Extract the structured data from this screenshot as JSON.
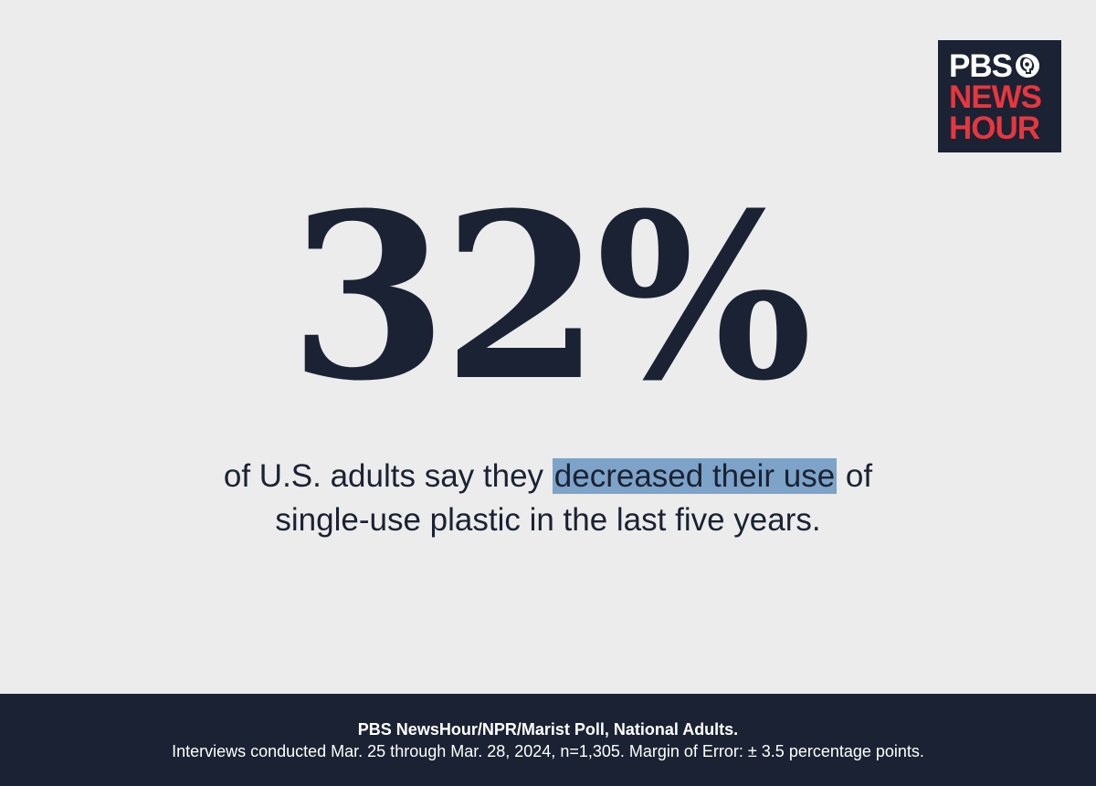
{
  "logo": {
    "line1": "PBS",
    "line2": "NEWS",
    "line3": "HOUR",
    "icon": "pbs-head-icon",
    "colors": {
      "background": "#1a2233",
      "white_text": "#ffffff",
      "red_text": "#e8363d"
    }
  },
  "stat": {
    "value": "32%"
  },
  "caption": {
    "line1_before": "of U.S. adults say they ",
    "line1_highlight": "decreased their use",
    "line1_after": " of",
    "line2": "single-use plastic in the last five years.",
    "highlight_color": "#7ea3c8"
  },
  "footer": {
    "source": "PBS NewsHour/NPR/Marist Poll, National Adults.",
    "methodology": "Interviews conducted Mar. 25 through Mar. 28, 2024, n=1,305. Margin of Error:  ± 3.5 percentage points."
  },
  "colors": {
    "page_background": "#ececec",
    "navy": "#1a2233"
  }
}
